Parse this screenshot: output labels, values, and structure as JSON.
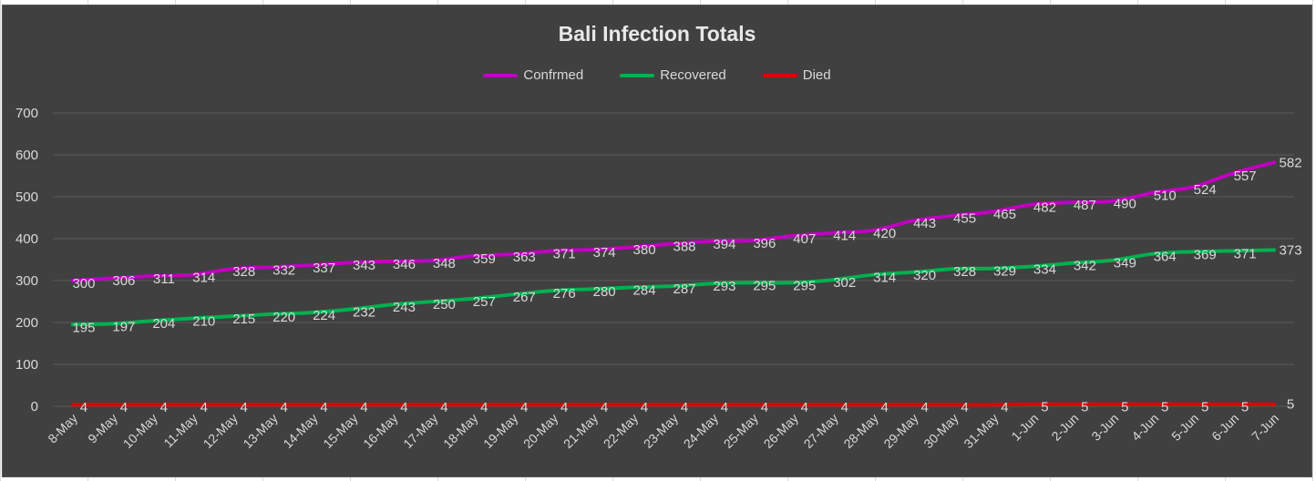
{
  "chart_data": {
    "type": "line",
    "title": "Bali Infection Totals",
    "xlabel": "",
    "ylabel": "",
    "ylim": [
      0,
      700
    ],
    "yticks": [
      0,
      100,
      200,
      300,
      400,
      500,
      600,
      700
    ],
    "grid": true,
    "legend_position": "top",
    "categories": [
      "8-May",
      "9-May",
      "10-May",
      "11-May",
      "12-May",
      "13-May",
      "14-May",
      "15-May",
      "16-May",
      "17-May",
      "18-May",
      "19-May",
      "20-May",
      "21-May",
      "22-May",
      "23-May",
      "24-May",
      "25-May",
      "26-May",
      "27-May",
      "28-May",
      "29-May",
      "30-May",
      "31-May",
      "1-Jun",
      "2-Jun",
      "3-Jun",
      "4-Jun",
      "5-Jun",
      "6-Jun",
      "7-Jun"
    ],
    "series": [
      {
        "name": "Confrmed",
        "color": "#c000c0",
        "values": [
          300,
          306,
          311,
          314,
          328,
          332,
          337,
          343,
          346,
          348,
          359,
          363,
          371,
          374,
          380,
          388,
          394,
          396,
          407,
          414,
          420,
          443,
          455,
          465,
          482,
          487,
          490,
          510,
          524,
          557,
          582
        ]
      },
      {
        "name": "Recovered",
        "color": "#00b050",
        "values": [
          195,
          197,
          204,
          210,
          215,
          220,
          224,
          232,
          243,
          250,
          257,
          267,
          276,
          280,
          284,
          287,
          293,
          295,
          295,
          302,
          314,
          320,
          328,
          329,
          334,
          342,
          349,
          364,
          369,
          371,
          373
        ]
      },
      {
        "name": "Died",
        "color": "#e00000",
        "values": [
          4,
          4,
          4,
          4,
          4,
          4,
          4,
          4,
          4,
          4,
          4,
          4,
          4,
          4,
          4,
          4,
          4,
          4,
          4,
          4,
          4,
          4,
          4,
          4,
          5,
          5,
          5,
          5,
          5,
          5,
          5
        ]
      }
    ]
  }
}
